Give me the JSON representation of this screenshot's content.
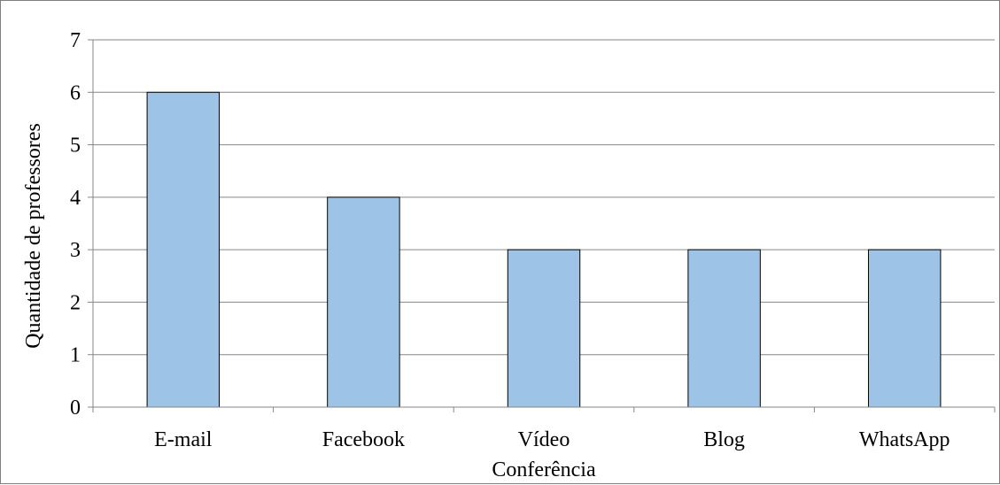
{
  "chart_data": {
    "type": "bar",
    "title": "",
    "xlabel": "",
    "ylabel": "Quantidade de professores",
    "categories": [
      [
        "E-mail"
      ],
      [
        "Facebook"
      ],
      [
        "Vídeo",
        "Conferência"
      ],
      [
        "Blog"
      ],
      [
        "WhatsApp"
      ]
    ],
    "values": [
      6,
      4,
      3,
      3,
      3
    ],
    "ylim": [
      0,
      7
    ],
    "yticks": [
      "0",
      "1",
      "2",
      "3",
      "4",
      "5",
      "6",
      "7"
    ],
    "grid": true,
    "legend": "none",
    "colors": {
      "bar_fill": "#9dc3e6",
      "bar_stroke": "#000000",
      "gridline": "#868686",
      "axis": "#868686",
      "frame": "#7f7f7f"
    }
  }
}
